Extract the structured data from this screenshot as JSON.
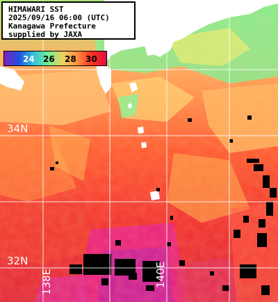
{
  "info": {
    "line1": "HIMAWARI SST",
    "line2": "2025/09/16 06:00 (UTC)",
    "line3": "Kanagawa Prefecture",
    "line4": "supplied by JAXA"
  },
  "legend": {
    "ticks": [
      "24",
      "26",
      "28",
      "30"
    ],
    "colors": [
      "#8020c0",
      "#2050e0",
      "#30c0e0",
      "#70ee90",
      "#f0d060",
      "#ff9040",
      "#ff3020",
      "#e01040"
    ]
  },
  "grid": {
    "lat_labels": [
      "34N",
      "32N"
    ],
    "lon_labels": [
      "138E",
      "140E"
    ]
  },
  "colors": {
    "land": "#ffffff",
    "grid": "#ffffff",
    "cloud": "#000000"
  }
}
